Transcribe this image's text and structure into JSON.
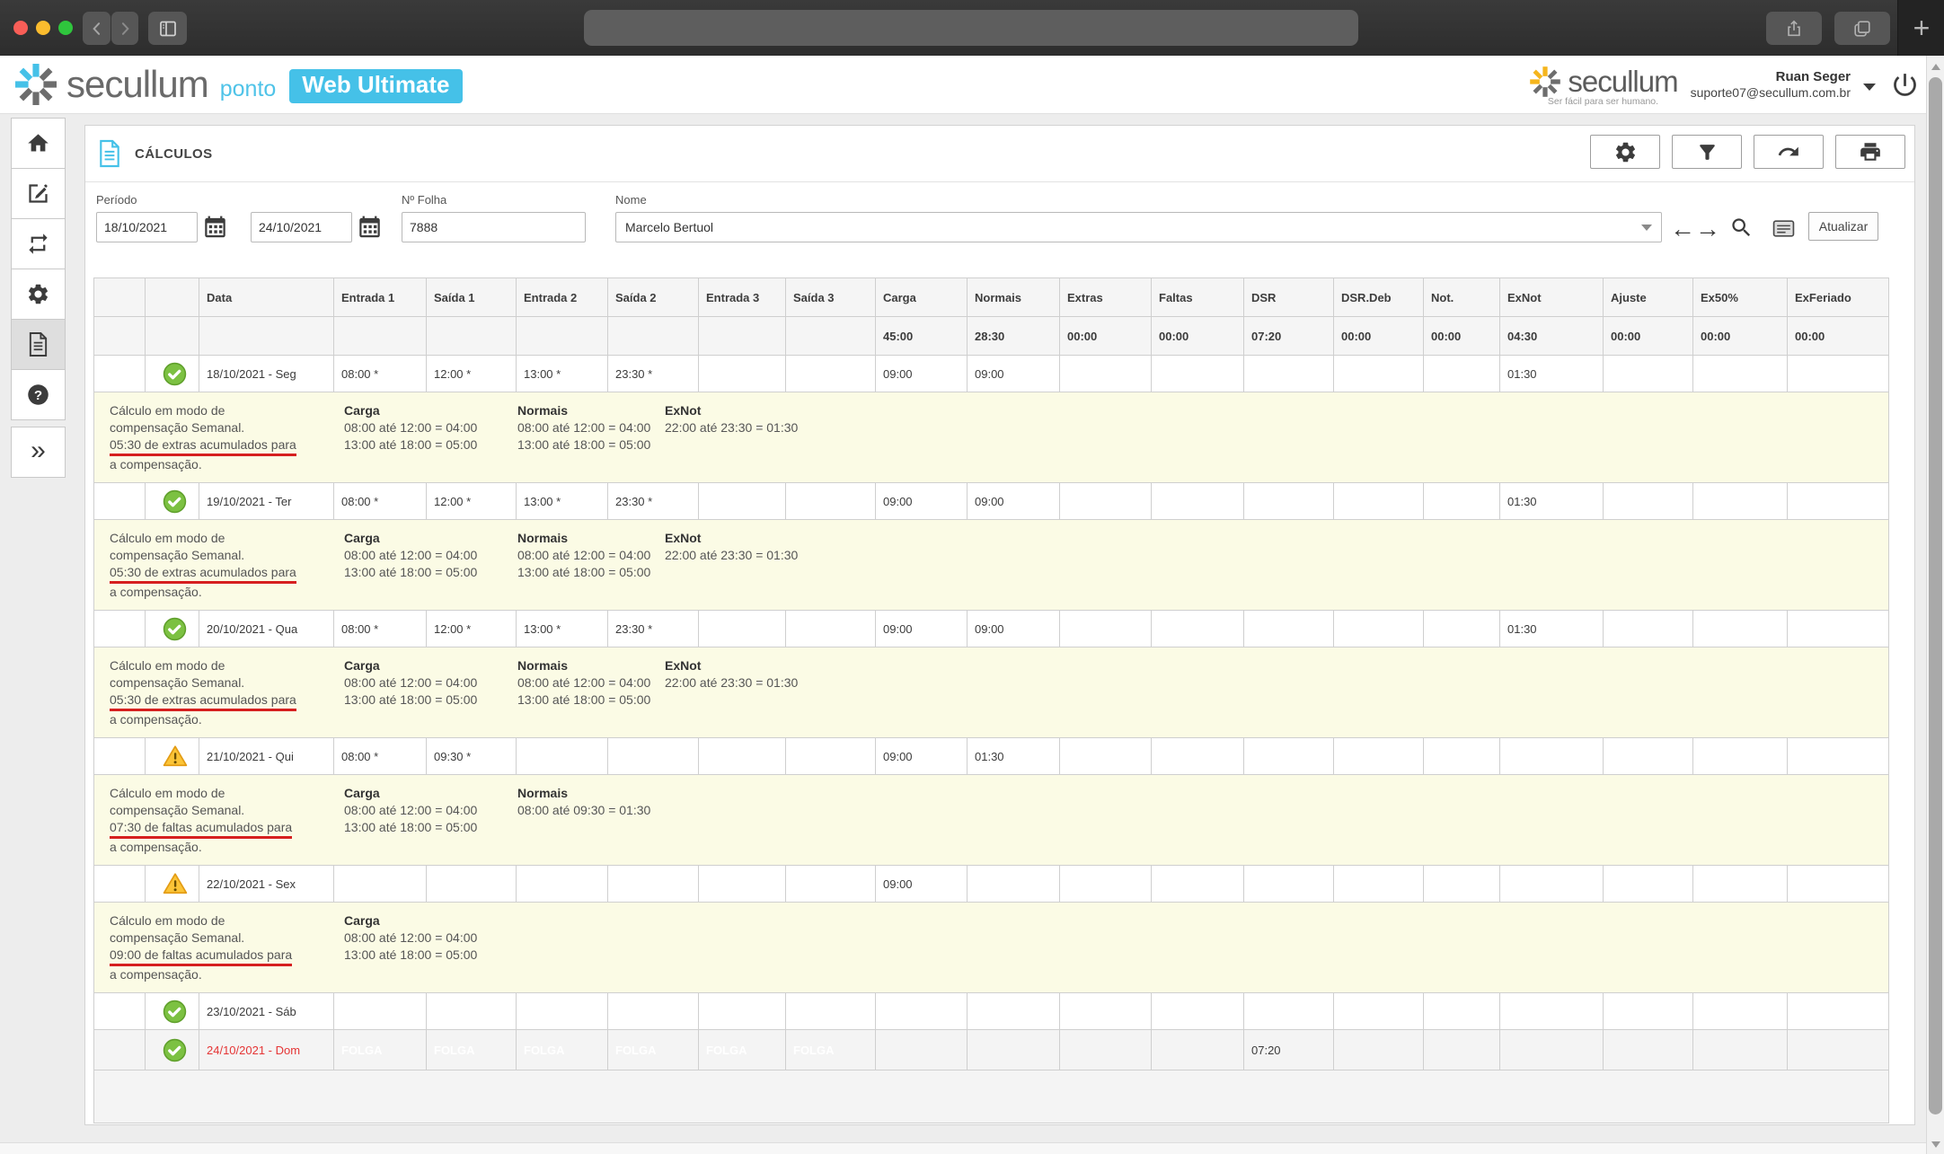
{
  "icons": {
    "new_tab": "+",
    "expand_chevrons": "»",
    "help_mark": "?"
  },
  "header": {
    "brand": "secullum",
    "product": "ponto",
    "edition": "Web Ultimate",
    "brand_right": "secullum",
    "tagline": "Ser fácil para ser humano.",
    "user_name": "Ruan Seger",
    "user_email": "suporte07@secullum.com.br"
  },
  "sidebar": {
    "items": [
      {
        "name": "home"
      },
      {
        "name": "edit"
      },
      {
        "name": "sync"
      },
      {
        "name": "settings"
      },
      {
        "name": "calculations",
        "active": true
      },
      {
        "name": "help"
      },
      {
        "name": "expand",
        "gap": true
      }
    ]
  },
  "page": {
    "title": "CÁLCULOS",
    "toolbar": [
      {
        "name": "settings"
      },
      {
        "name": "filter"
      },
      {
        "name": "export"
      },
      {
        "name": "print"
      }
    ],
    "filters": {
      "periodo_label": "Período",
      "periodo_start": "18/10/2021",
      "periodo_end": "24/10/2021",
      "folha_label": "Nº Folha",
      "folha_value": "7888",
      "nome_label": "Nome",
      "nome_value": "Marcelo Bertuol",
      "atualizar_label": "Atualizar"
    }
  },
  "colors": {
    "accent": "#45c1e8",
    "folga": "#41c4e9",
    "success": "#7cc142",
    "warning": "#fbc437",
    "note_bg": "#fbfbe5",
    "date_red": "#e53535",
    "underline_red": "#d61f1f"
  },
  "table": {
    "columns": [
      "",
      "",
      "Data",
      "Entrada 1",
      "Saída 1",
      "Entrada 2",
      "Saída 2",
      "Entrada 3",
      "Saída 3",
      "Carga",
      "Normais",
      "Extras",
      "Faltas",
      "DSR",
      "DSR.Deb",
      "Not.",
      "ExNot",
      "Ajuste",
      "Ex50%",
      "ExFeriado"
    ],
    "totals": [
      "",
      "",
      "",
      "",
      "",
      "",
      "45:00",
      "28:30",
      "00:00",
      "00:00",
      "07:20",
      "00:00",
      "00:00",
      "04:30",
      "00:00",
      "00:00",
      "00:00"
    ],
    "rows": [
      {
        "type": "day",
        "status": "ok",
        "date": "18/10/2021 - Seg",
        "cells": [
          "08:00 *",
          "12:00 *",
          "13:00 *",
          "23:30 *",
          "",
          "",
          "09:00",
          "09:00",
          "",
          "",
          "",
          "",
          "",
          "01:30",
          "",
          "",
          ""
        ]
      },
      {
        "type": "note",
        "left": [
          "Cálculo em modo de",
          "compensação Semanal.",
          "05:30 de extras acumulados para",
          "a compensação."
        ],
        "underline": 2,
        "blocks": [
          {
            "title": "Carga",
            "lines": [
              "08:00 até 12:00 = 04:00",
              "13:00 até 18:00 = 05:00"
            ]
          },
          {
            "title": "Normais",
            "lines": [
              "08:00 até 12:00 = 04:00",
              "13:00 até 18:00 = 05:00"
            ]
          },
          {
            "title": "ExNot",
            "lines": [
              "22:00 até 23:30 = 01:30"
            ]
          }
        ]
      },
      {
        "type": "day",
        "status": "ok",
        "date": "19/10/2021 - Ter",
        "cells": [
          "08:00 *",
          "12:00 *",
          "13:00 *",
          "23:30 *",
          "",
          "",
          "09:00",
          "09:00",
          "",
          "",
          "",
          "",
          "",
          "01:30",
          "",
          "",
          ""
        ]
      },
      {
        "type": "note",
        "left": [
          "Cálculo em modo de",
          "compensação Semanal.",
          "05:30 de extras acumulados para",
          "a compensação."
        ],
        "underline": 2,
        "blocks": [
          {
            "title": "Carga",
            "lines": [
              "08:00 até 12:00 = 04:00",
              "13:00 até 18:00 = 05:00"
            ]
          },
          {
            "title": "Normais",
            "lines": [
              "08:00 até 12:00 = 04:00",
              "13:00 até 18:00 = 05:00"
            ]
          },
          {
            "title": "ExNot",
            "lines": [
              "22:00 até 23:30 = 01:30"
            ]
          }
        ]
      },
      {
        "type": "day",
        "status": "ok",
        "date": "20/10/2021 - Qua",
        "cells": [
          "08:00 *",
          "12:00 *",
          "13:00 *",
          "23:30 *",
          "",
          "",
          "09:00",
          "09:00",
          "",
          "",
          "",
          "",
          "",
          "01:30",
          "",
          "",
          ""
        ]
      },
      {
        "type": "note",
        "left": [
          "Cálculo em modo de",
          "compensação Semanal.",
          "05:30 de extras acumulados para",
          "a compensação."
        ],
        "underline": 2,
        "blocks": [
          {
            "title": "Carga",
            "lines": [
              "08:00 até 12:00 = 04:00",
              "13:00 até 18:00 = 05:00"
            ]
          },
          {
            "title": "Normais",
            "lines": [
              "08:00 até 12:00 = 04:00",
              "13:00 até 18:00 = 05:00"
            ]
          },
          {
            "title": "ExNot",
            "lines": [
              "22:00 até 23:30 = 01:30"
            ]
          }
        ]
      },
      {
        "type": "day",
        "status": "warn",
        "date": "21/10/2021 - Qui",
        "cells": [
          "08:00 *",
          "09:30 *",
          "",
          "",
          "",
          "",
          "09:00",
          "01:30",
          "",
          "",
          "",
          "",
          "",
          "",
          "",
          "",
          ""
        ]
      },
      {
        "type": "note",
        "left": [
          "Cálculo em modo de",
          "compensação Semanal.",
          "07:30 de faltas acumulados para",
          "a compensação."
        ],
        "underline": 2,
        "blocks": [
          {
            "title": "Carga",
            "lines": [
              "08:00 até 12:00 = 04:00",
              "13:00 até 18:00 = 05:00"
            ]
          },
          {
            "title": "Normais",
            "lines": [
              "08:00 até 09:30 = 01:30"
            ]
          }
        ]
      },
      {
        "type": "day",
        "status": "warn",
        "date": "22/10/2021 - Sex",
        "cells": [
          "",
          "",
          "",
          "",
          "",
          "",
          "09:00",
          "",
          "",
          "",
          "",
          "",
          "",
          "",
          "",
          "",
          ""
        ]
      },
      {
        "type": "note",
        "left": [
          "Cálculo em modo de",
          "compensação Semanal.",
          "09:00 de faltas acumulados para",
          "a compensação."
        ],
        "underline": 2,
        "blocks": [
          {
            "title": "Carga",
            "lines": [
              "08:00 até 12:00 = 04:00",
              "13:00 até 18:00 = 05:00"
            ]
          }
        ]
      },
      {
        "type": "day",
        "status": "ok",
        "date": "23/10/2021 - Sáb",
        "cells": [
          "",
          "",
          "",
          "",
          "",
          "",
          "",
          "",
          "",
          "",
          "",
          "",
          "",
          "",
          "",
          "",
          ""
        ]
      },
      {
        "type": "day",
        "status": "ok",
        "date": "24/10/2021 - Dom",
        "date_red": true,
        "shaded": true,
        "tall": true,
        "folga": true,
        "cells": [
          "FOLGA",
          "FOLGA",
          "FOLGA",
          "FOLGA",
          "FOLGA",
          "FOLGA",
          "",
          "",
          "",
          "",
          "07:20",
          "",
          "",
          "",
          "",
          "",
          ""
        ]
      },
      {
        "type": "empty"
      }
    ]
  }
}
